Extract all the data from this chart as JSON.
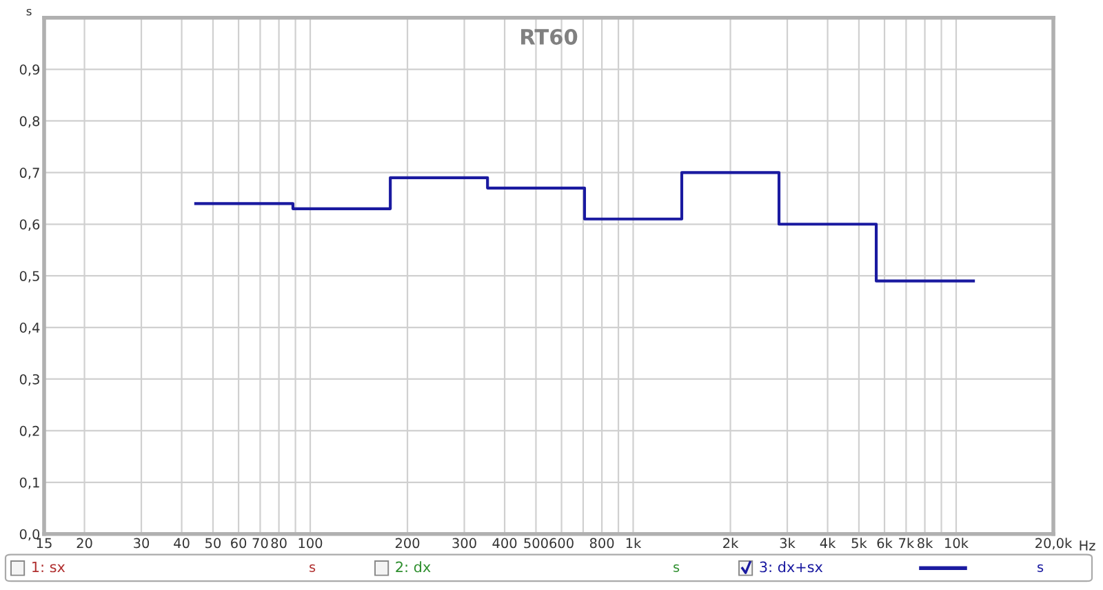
{
  "chart_data": {
    "type": "step",
    "title": "RT60",
    "ylabel": "s",
    "xlabel": "Hz",
    "x": [
      44.2,
      88.4,
      177,
      354,
      707,
      1414,
      2828,
      5657,
      11314
    ],
    "series": [
      {
        "name": "3: dx+sx",
        "color": "#1a1aa0",
        "values": [
          0.64,
          0.63,
          0.69,
          0.67,
          0.61,
          0.7,
          0.6,
          0.49,
          0.49
        ]
      }
    ],
    "log": "x",
    "xlim": [
      15,
      20000
    ],
    "ylim": [
      0,
      1
    ],
    "xticks": [
      15,
      20,
      30,
      40,
      50,
      60,
      70,
      80,
      {
        "value": 90,
        "label": null
      },
      100,
      200,
      300,
      400,
      500,
      600,
      {
        "value": 700,
        "label": null
      },
      800,
      {
        "value": 900,
        "label": null
      },
      {
        "value": 1000,
        "label": "1k"
      },
      {
        "value": 2000,
        "label": "2k"
      },
      {
        "value": 3000,
        "label": "3k"
      },
      {
        "value": 4000,
        "label": "4k"
      },
      {
        "value": 5000,
        "label": "5k"
      },
      {
        "value": 6000,
        "label": "6k"
      },
      {
        "value": 7000,
        "label": "7k"
      },
      {
        "value": 8000,
        "label": "8k"
      },
      {
        "value": 9000,
        "label": null
      },
      {
        "value": 10000,
        "label": "10k"
      },
      {
        "value": 20000,
        "label": "20,0k"
      }
    ],
    "yticks": [
      {
        "value": 0,
        "label": "0,0"
      },
      {
        "value": 0.1,
        "label": "0,1"
      },
      {
        "value": 0.2,
        "label": "0,2"
      },
      {
        "value": 0.3,
        "label": "0,3"
      },
      {
        "value": 0.4,
        "label": "0,4"
      },
      {
        "value": 0.5,
        "label": "0,5"
      },
      {
        "value": 0.6,
        "label": "0,6"
      },
      {
        "value": 0.7,
        "label": "0,7"
      },
      {
        "value": 0.8,
        "label": "0,8"
      },
      {
        "value": 0.9,
        "label": "0,9"
      }
    ],
    "grid": true,
    "legend": "bottom",
    "line_style": "solid",
    "marker": "none",
    "annotations": [
      "1: sx",
      "s",
      "2: dx",
      "s",
      "s"
    ]
  }
}
